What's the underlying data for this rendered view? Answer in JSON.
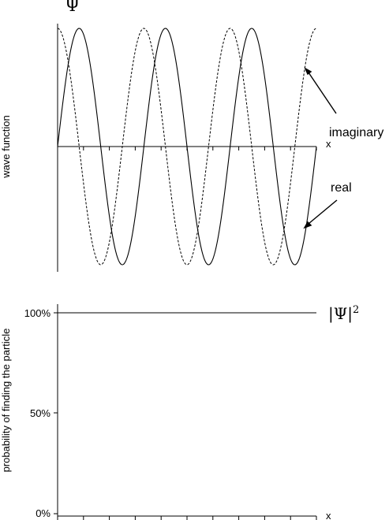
{
  "chart_data": [
    {
      "type": "line",
      "ylabel": "wave function",
      "xlabel": "x",
      "axis_symbol": "Ψ",
      "x_range": [
        0,
        10
      ],
      "y_range": [
        -1,
        1
      ],
      "grid": false,
      "series": [
        {
          "name": "real",
          "function": "sin",
          "amplitude": 1,
          "cycles": 3,
          "style": "solid",
          "color": "#000000"
        },
        {
          "name": "imaginary",
          "function": "cos",
          "amplitude": 1,
          "cycles": 3,
          "style": "dashed",
          "color": "#000000"
        }
      ],
      "annotations": [
        {
          "text": "imaginary",
          "points_to": "imaginary"
        },
        {
          "text": "real",
          "points_to": "real"
        }
      ]
    },
    {
      "type": "line",
      "ylabel": "probability of finding the particle",
      "xlabel": "x",
      "y_range": [
        0,
        100
      ],
      "y_ticks": [
        "0%",
        "50%",
        "100%"
      ],
      "grid": false,
      "series": [
        {
          "name": "|Ψ|²",
          "base": "|Ψ|",
          "exponent": "2",
          "constant_value": 100,
          "style": "solid",
          "color": "#000000"
        }
      ]
    }
  ]
}
